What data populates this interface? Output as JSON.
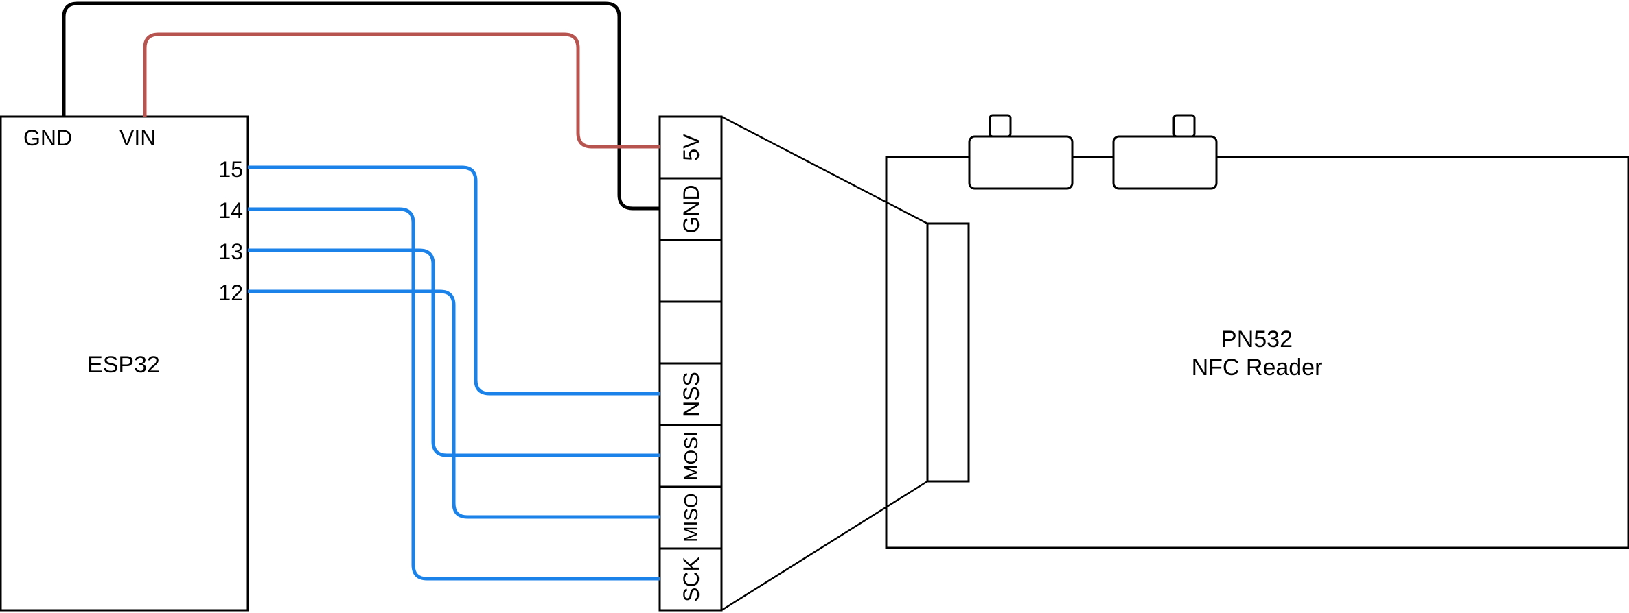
{
  "esp32": {
    "name": "ESP32",
    "top_pins": {
      "gnd": "GND",
      "vin": "VIN"
    },
    "side_pins": {
      "p15": "15",
      "p14": "14",
      "p13": "13",
      "p12": "12"
    }
  },
  "connector": {
    "pins": {
      "v5": "5V",
      "gnd": "GND",
      "nss": "NSS",
      "mosi": "MOSI",
      "miso": "MISO",
      "sck": "SCK"
    }
  },
  "pn532": {
    "line1": "PN532",
    "line2": "NFC Reader"
  },
  "colors": {
    "spi_wire": "#1a82e8",
    "power_wire": "#b85450",
    "ground_wire": "#000000"
  }
}
